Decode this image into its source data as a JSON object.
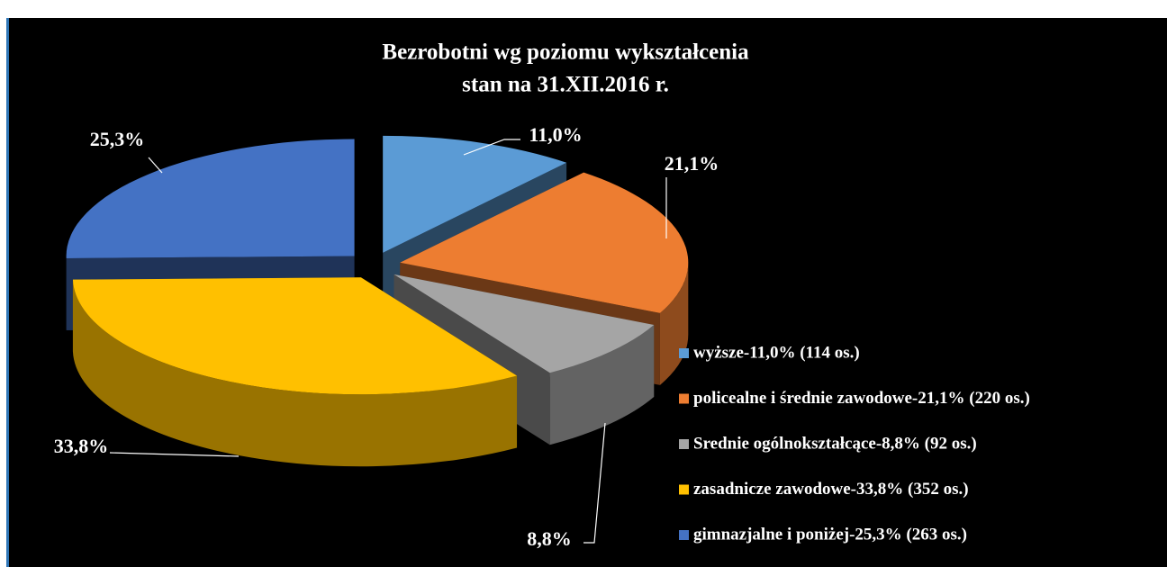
{
  "chart_data": {
    "type": "pie3d",
    "title": [
      "Bezrobotni wg poziomu wykształcenia",
      "stan na 31.XII.2016 r."
    ],
    "categories": [
      "wyższe-11,0% (114 os.)",
      "policealne i średnie zawodowe-21,1% (220 os.)",
      "Srednie ogólnokształcące-8,8% (92 os.)",
      "zasadnicze zawodowe-33,8% (352 os.)",
      "gimnazjalne i poniżej-25,3% (263 os.)"
    ],
    "values": [
      11.0,
      21.1,
      8.8,
      33.8,
      25.3
    ],
    "value_labels": [
      "11,0%",
      "21,1%",
      "8,8%",
      "33,8%",
      "25,3%"
    ],
    "colors": [
      "#5b9bd5",
      "#ed7d31",
      "#a5a5a5",
      "#ffc000",
      "#4472c4"
    ],
    "legend": "right"
  }
}
